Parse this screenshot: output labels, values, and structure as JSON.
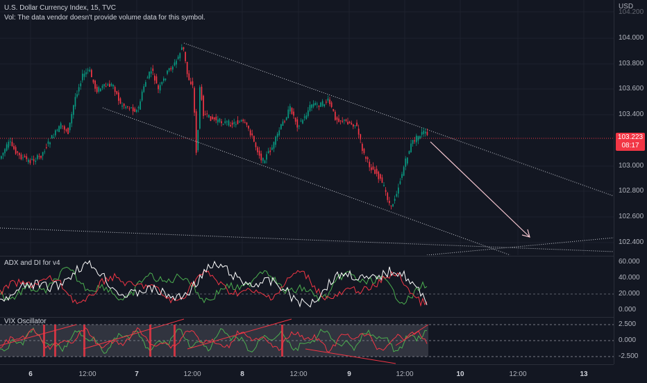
{
  "header": {
    "symbol_line": "U.S. Dollar Currency Index, 15, TVC",
    "vol_line": "Vol: The data vendor doesn't provide volume data for this symbol."
  },
  "price_axis": {
    "currency": "USD",
    "labels": [
      "104.200",
      "104.000",
      "103.800",
      "103.600",
      "103.400",
      "103.000",
      "102.800",
      "102.600",
      "102.400"
    ],
    "current_price": "103.223",
    "countdown": "08:17"
  },
  "adx_pane": {
    "title": "ADX and DI for v4",
    "axis_labels": [
      "60.000",
      "40.000",
      "20.000",
      "0.000"
    ]
  },
  "vix_pane": {
    "title": "VIX Oscillator",
    "axis_labels": [
      "2.500",
      "0.000",
      "-2.500"
    ]
  },
  "time_axis": {
    "labels": [
      "6",
      "12:00",
      "7",
      "12:00",
      "8",
      "12:00",
      "9",
      "12:00",
      "10",
      "12:00",
      "13"
    ]
  },
  "colors": {
    "background": "#131722",
    "up": "#089981",
    "down": "#f23645",
    "price_line": "#f23645",
    "channel": "#d1d4dc",
    "projection_arrow": "#f7c8d2",
    "adx_white": "#ffffff",
    "di_plus_green": "#4caf50",
    "di_minus_red": "#f23645",
    "vix_band": "#5d606b"
  }
}
